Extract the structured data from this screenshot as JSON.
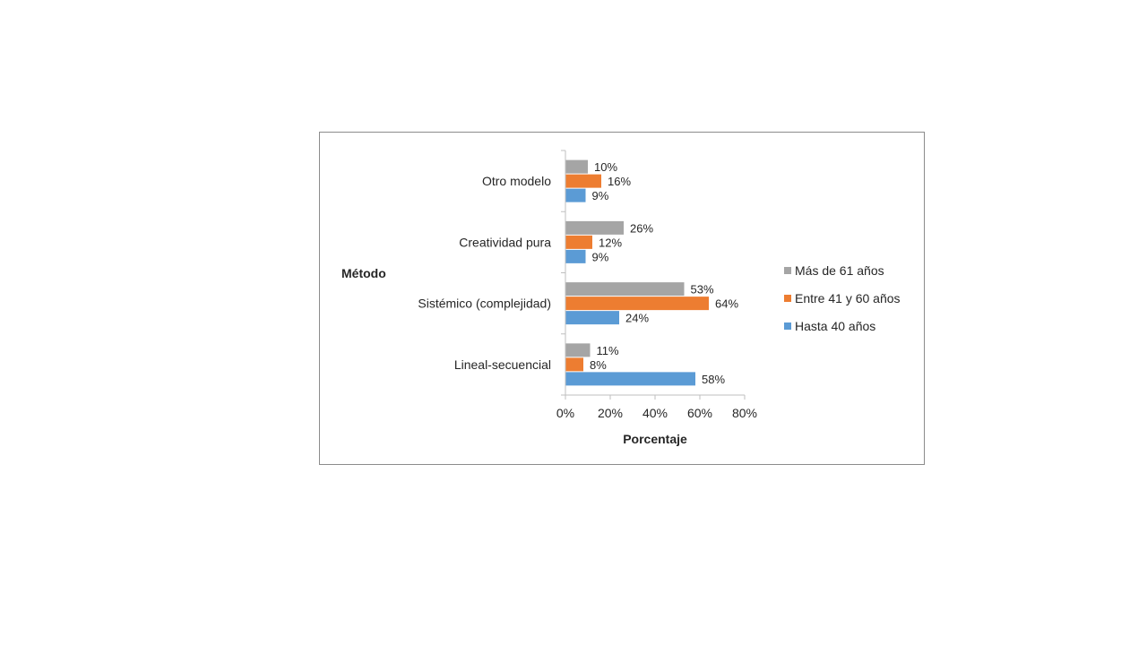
{
  "chart_data": {
    "type": "bar",
    "orientation": "horizontal",
    "title": "",
    "xlabel": "Porcentaje",
    "ylabel": "Método",
    "categories": [
      "Lineal-secuencial",
      "Sistémico (complejidad)",
      "Creatividad pura",
      "Otro modelo"
    ],
    "series": [
      {
        "name": "Hasta 40 años",
        "color": "#5b9bd5",
        "values": [
          58,
          24,
          9,
          9
        ],
        "labels": [
          "58%",
          "24%",
          "9%",
          "9%"
        ]
      },
      {
        "name": "Entre 41 y 60 años",
        "color": "#ed7d31",
        "values": [
          8,
          64,
          12,
          16
        ],
        "labels": [
          "8%",
          "64%",
          "12%",
          "16%"
        ]
      },
      {
        "name": "Más de 61 años",
        "color": "#a5a5a5",
        "values": [
          11,
          53,
          26,
          10
        ],
        "labels": [
          "11%",
          "53%",
          "26%",
          "10%"
        ]
      }
    ],
    "legend_order": [
      "Más de 61 años",
      "Entre 41 y 60 años",
      "Hasta 40 años"
    ],
    "xlim": [
      0,
      80
    ],
    "xticks": [
      0,
      20,
      40,
      60,
      80
    ],
    "xtick_labels": [
      "0%",
      "20%",
      "40%",
      "60%",
      "80%"
    ],
    "grid": false,
    "legend_position": "right"
  }
}
